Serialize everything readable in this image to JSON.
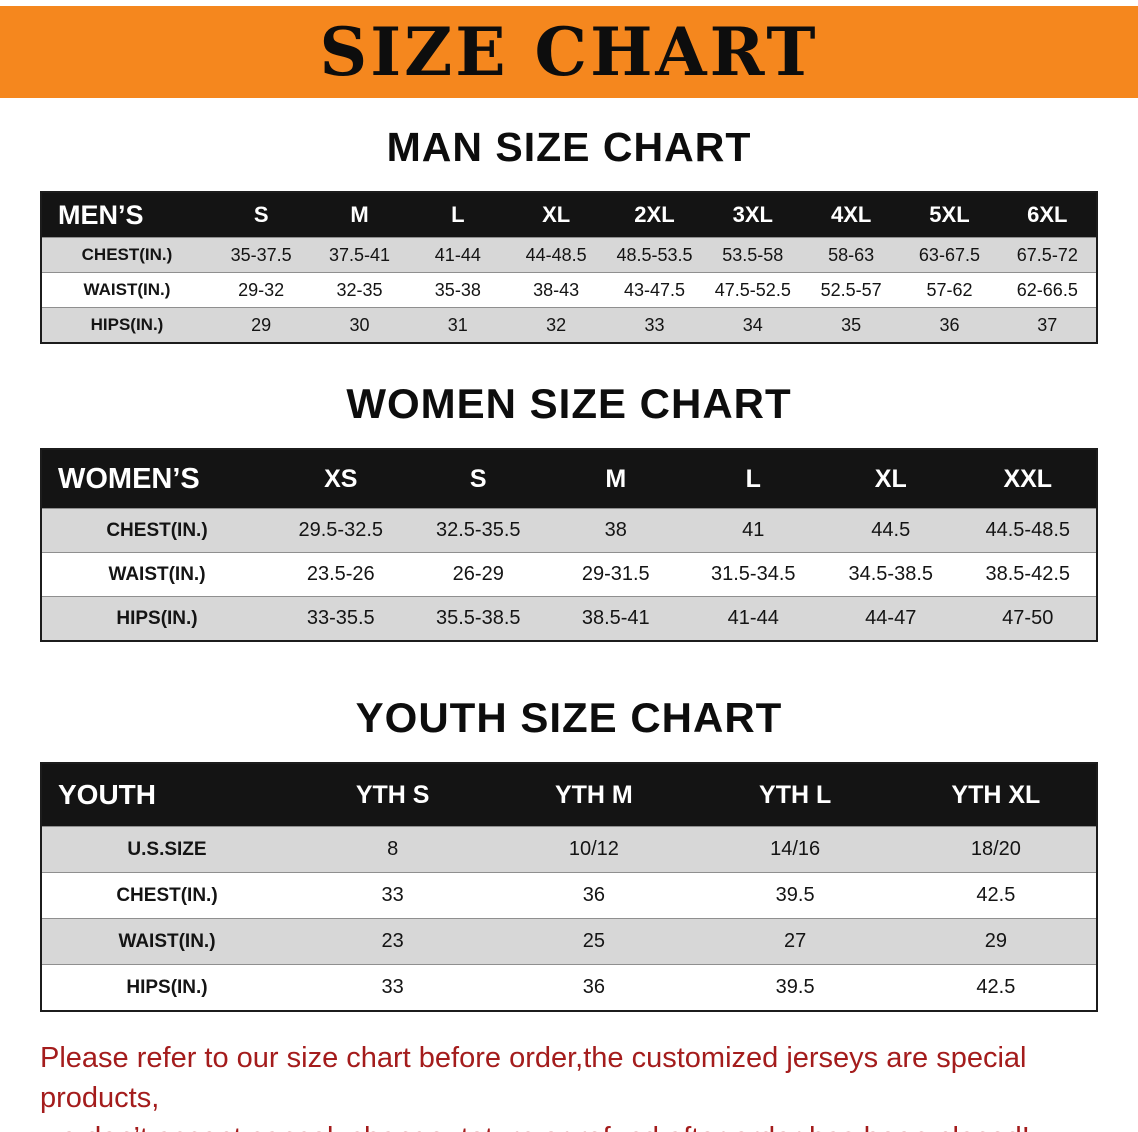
{
  "colors": {
    "banner_orange": "#f5871e",
    "table_header_black": "#141414",
    "row_shade_gray": "#d7d7d7",
    "footer_red": "#a41c1c"
  },
  "banner": {
    "title": "SIZE CHART"
  },
  "sections": {
    "men": {
      "heading": "MAN SIZE CHART",
      "table": {
        "header": [
          "MEN’S",
          "S",
          "M",
          "L",
          "XL",
          "2XL",
          "3XL",
          "4XL",
          "5XL",
          "6XL"
        ],
        "rows": [
          [
            "CHEST(IN.)",
            "35-37.5",
            "37.5-41",
            "41-44",
            "44-48.5",
            "48.5-53.5",
            "53.5-58",
            "58-63",
            "63-67.5",
            "67.5-72"
          ],
          [
            "WAIST(IN.)",
            "29-32",
            "32-35",
            "35-38",
            "38-43",
            "43-47.5",
            "47.5-52.5",
            "52.5-57",
            "57-62",
            "62-66.5"
          ],
          [
            "HIPS(IN.)",
            "29",
            "30",
            "31",
            "32",
            "33",
            "34",
            "35",
            "36",
            "37"
          ]
        ]
      }
    },
    "women": {
      "heading": "WOMEN SIZE CHART",
      "table": {
        "header": [
          "WOMEN’S",
          "XS",
          "S",
          "M",
          "L",
          "XL",
          "XXL"
        ],
        "rows": [
          [
            "CHEST(IN.)",
            "29.5-32.5",
            "32.5-35.5",
            "38",
            "41",
            "44.5",
            "44.5-48.5"
          ],
          [
            "WAIST(IN.)",
            "23.5-26",
            "26-29",
            "29-31.5",
            "31.5-34.5",
            "34.5-38.5",
            "38.5-42.5"
          ],
          [
            "HIPS(IN.)",
            "33-35.5",
            "35.5-38.5",
            "38.5-41",
            "41-44",
            "44-47",
            "47-50"
          ]
        ]
      }
    },
    "youth": {
      "heading": "YOUTH SIZE CHART",
      "table": {
        "header": [
          "YOUTH",
          "YTH S",
          "YTH M",
          "YTH L",
          "YTH XL"
        ],
        "rows": [
          [
            "U.S.SIZE",
            "8",
            "10/12",
            "14/16",
            "18/20"
          ],
          [
            "CHEST(IN.)",
            "33",
            "36",
            "39.5",
            "42.5"
          ],
          [
            "WAIST(IN.)",
            "23",
            "25",
            "27",
            "29"
          ],
          [
            "HIPS(IN.)",
            "33",
            "36",
            "39.5",
            "42.5"
          ]
        ]
      }
    }
  },
  "footer": {
    "line1": "Please refer to our size chart before order,the customized jerseys are special products,",
    "line2": "we don’t accept cancel, change, teturn or refund after order has been placed!"
  }
}
